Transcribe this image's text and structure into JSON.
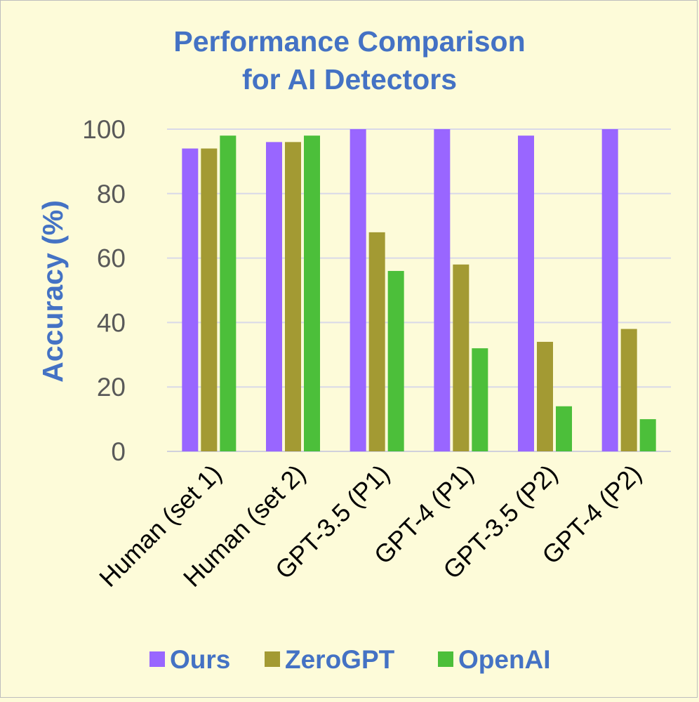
{
  "chart_data": {
    "type": "bar",
    "title": [
      "Performance Comparison",
      "for AI Detectors"
    ],
    "ylabel": "Accuracy (%)",
    "xlabel": "",
    "ylim": [
      0,
      100
    ],
    "yticks": [
      0,
      20,
      40,
      60,
      80,
      100
    ],
    "grid": true,
    "legend_position": "bottom",
    "categories": [
      "Human (set 1)",
      "Human (set 2)",
      "GPT-3.5 (P1)",
      "GPT-4 (P1)",
      "GPT-3.5 (P2)",
      "GPT-4 (P2)"
    ],
    "series": [
      {
        "name": "Ours",
        "color": "#9966ff",
        "values": [
          94,
          96,
          100,
          100,
          98,
          100
        ]
      },
      {
        "name": "ZeroGPT",
        "color": "#a39a33",
        "values": [
          94,
          96,
          68,
          58,
          34,
          38
        ]
      },
      {
        "name": "OpenAI",
        "color": "#4cbf3a",
        "values": [
          98,
          98,
          56,
          32,
          14,
          10
        ]
      }
    ]
  },
  "colors": {
    "background": "#fdfbd9",
    "title": "#4472c4",
    "gridline": "#d9d9e8"
  }
}
